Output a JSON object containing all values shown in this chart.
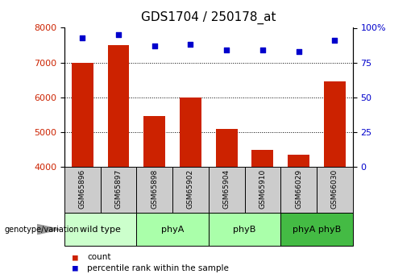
{
  "title": "GDS1704 / 250178_at",
  "samples": [
    "GSM65896",
    "GSM65897",
    "GSM65898",
    "GSM65902",
    "GSM65904",
    "GSM65910",
    "GSM66029",
    "GSM66030"
  ],
  "counts": [
    7000,
    7500,
    5450,
    6000,
    5100,
    4480,
    4350,
    6450
  ],
  "percentile_ranks": [
    93,
    95,
    87,
    88,
    84,
    84,
    83,
    91
  ],
  "groups": [
    {
      "label": "wild type",
      "start": 0,
      "end": 2,
      "color": "#ccffcc"
    },
    {
      "label": "phyA",
      "start": 2,
      "end": 4,
      "color": "#99ee99"
    },
    {
      "label": "phyB",
      "start": 4,
      "end": 6,
      "color": "#99ee99"
    },
    {
      "label": "phyA phyB",
      "start": 6,
      "end": 8,
      "color": "#44cc44"
    }
  ],
  "ylim_left": [
    4000,
    8000
  ],
  "ylim_right": [
    0,
    100
  ],
  "yticks_left": [
    4000,
    5000,
    6000,
    7000,
    8000
  ],
  "yticks_right": [
    0,
    25,
    50,
    75,
    100
  ],
  "bar_color": "#cc2200",
  "dot_color": "#0000cc",
  "background_color": "#ffffff",
  "title_fontsize": 11,
  "axis_label_color_left": "#cc2200",
  "axis_label_color_right": "#0000cc",
  "sample_box_color": "#cccccc",
  "group_wild_color": "#ccffcc",
  "group_phy_color": "#aaffaa",
  "group_phyAphyB_color": "#44bb44"
}
